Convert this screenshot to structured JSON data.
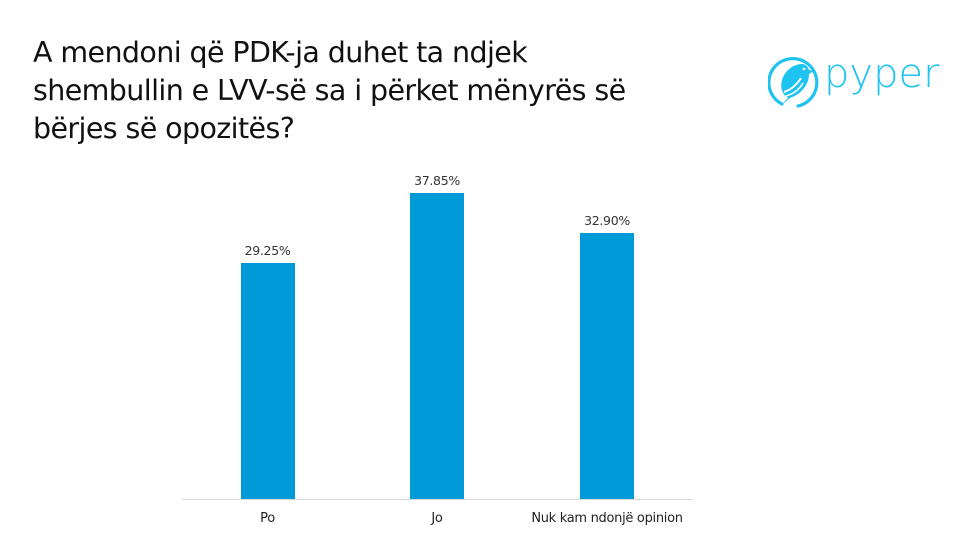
{
  "header": {
    "title_lines": [
      "A mendoni që PDK-ja duhet ta ndjek",
      "shembullin e LVV-së sa i përket mënyrës së",
      "bërjes së opozitës?"
    ],
    "logo_text": "pyper",
    "logo_icon": "bird-in-circle-icon",
    "brand_color": "#1ec3f0"
  },
  "chart_data": {
    "type": "bar",
    "title": "A mendoni që PDK-ja duhet ta ndjek shembullin e LVV-së sa i përket mënyrës së bërjes së opozitës?",
    "categories": [
      "Po",
      "Jo",
      "Nuk kam ndonjë opinion"
    ],
    "values": [
      29.25,
      37.85,
      32.9
    ],
    "value_labels": [
      "29.25%",
      "37.85%",
      "32.90%"
    ],
    "xlabel": "",
    "ylabel": "",
    "ylim": [
      0,
      40
    ],
    "grid": false,
    "legend": "none",
    "bar_color": "#009ad9"
  }
}
